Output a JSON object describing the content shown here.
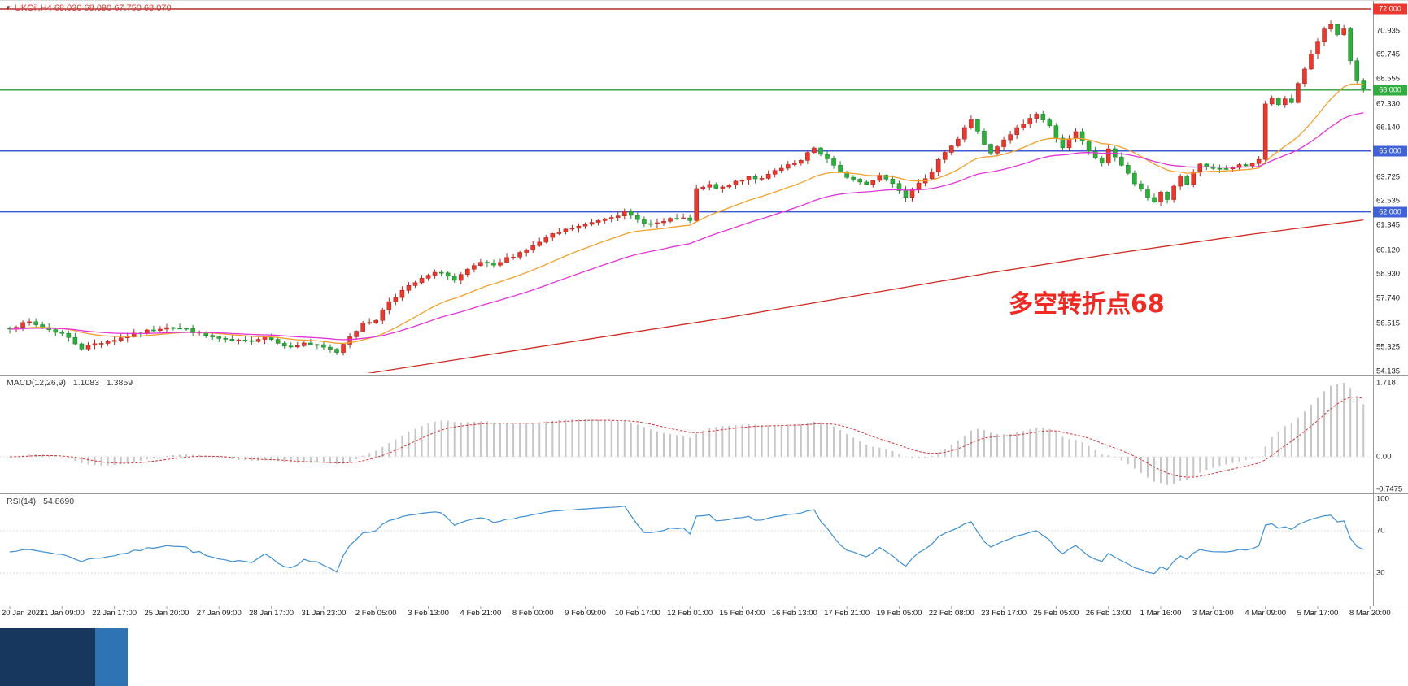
{
  "colors": {
    "up": "#e8392f",
    "up_border": "#b7271f",
    "down": "#2fae3e",
    "down_border": "#1d8b2c",
    "ma_fast": "#f0a030",
    "ma_mid": "#e236d6",
    "ma_slow": "#cc2a22",
    "macd_hist": "#c6c6c6",
    "macd_signal": "#d23636",
    "rsi_line": "#3f8fd2",
    "separator": "#999999",
    "title": "#d43c37",
    "annotation": "#ee2a24"
  },
  "taskbar_fragment": {
    "dark_block_color": "#17375e",
    "blue_block_color": "#2e74b5"
  },
  "chart_data": [
    {
      "type": "candlestick",
      "symbol": "UKOil",
      "timeframe": "H4",
      "title_full": "UKOil,H4 68.030 68.090 67.750 68.070",
      "quote": {
        "open": "68.030",
        "high": "68.090",
        "low": "67.750",
        "close": "68.070"
      },
      "ylim": [
        54.135,
        72.0
      ],
      "y_ticks": [
        70.935,
        69.745,
        68.555,
        67.33,
        66.14,
        63.725,
        62.535,
        61.345,
        60.12,
        58.93,
        57.74,
        56.515,
        55.325,
        54.135
      ],
      "level_lines": [
        {
          "price": 72.0,
          "label": "72.000",
          "line_color": "#b03030",
          "tag_color": "#e8392f"
        },
        {
          "price": 68.0,
          "label": "68.000",
          "line_color": "#2e9e3a",
          "tag_color": "#2fae3e"
        },
        {
          "price": 65.0,
          "label": "65.000",
          "line_color": "#3c59cf",
          "tag_color": "#3f62d8"
        },
        {
          "price": 62.0,
          "label": "62.000",
          "line_color": "#3c59cf",
          "tag_color": "#3f62d8"
        }
      ],
      "x_labels": [
        "20 Jan 2021",
        "21 Jan 09:00",
        "22 Jan 17:00",
        "25 Jan 20:00",
        "27 Jan 09:00",
        "28 Jan 17:00",
        "31 Jan 23:00",
        "2 Feb 05:00",
        "3 Feb 13:00",
        "4 Feb 21:00",
        "8 Feb 00:00",
        "9 Feb 09:00",
        "10 Feb 17:00",
        "12 Feb 01:00",
        "15 Feb 04:00",
        "16 Feb 13:00",
        "17 Feb 21:00",
        "19 Feb 05:00",
        "22 Feb 08:00",
        "23 Feb 17:00",
        "25 Feb 05:00",
        "26 Feb 13:00",
        "1 Mar 16:00",
        "3 Mar 01:00",
        "4 Mar 09:00",
        "5 Mar 17:00",
        "8 Mar 20:00"
      ],
      "candles_per_label": 8,
      "candle_count": 208,
      "close_waypoints": [
        [
          0,
          56.3
        ],
        [
          3,
          56.55
        ],
        [
          6,
          56.2
        ],
        [
          8,
          56.0
        ],
        [
          11,
          55.3
        ],
        [
          13,
          55.5
        ],
        [
          16,
          55.7
        ],
        [
          19,
          55.95
        ],
        [
          22,
          56.2
        ],
        [
          24,
          56.35
        ],
        [
          27,
          56.2
        ],
        [
          30,
          55.9
        ],
        [
          33,
          55.65
        ],
        [
          36,
          55.6
        ],
        [
          39,
          55.85
        ],
        [
          41,
          55.6
        ],
        [
          43,
          55.3
        ],
        [
          45,
          55.55
        ],
        [
          48,
          55.3
        ],
        [
          50,
          55.1
        ],
        [
          52,
          55.9
        ],
        [
          54,
          56.45
        ],
        [
          56,
          56.7
        ],
        [
          58,
          57.6
        ],
        [
          60,
          58.1
        ],
        [
          62,
          58.5
        ],
        [
          64,
          58.85
        ],
        [
          66,
          59.05
        ],
        [
          68,
          58.6
        ],
        [
          70,
          59.1
        ],
        [
          72,
          59.5
        ],
        [
          74,
          59.3
        ],
        [
          76,
          59.7
        ],
        [
          78,
          60.0
        ],
        [
          80,
          60.3
        ],
        [
          82,
          60.7
        ],
        [
          84,
          61.0
        ],
        [
          86,
          61.2
        ],
        [
          88,
          61.35
        ],
        [
          90,
          61.6
        ],
        [
          92,
          61.8
        ],
        [
          94,
          61.95
        ],
        [
          96,
          61.6
        ],
        [
          98,
          61.4
        ],
        [
          100,
          61.5
        ],
        [
          102,
          61.7
        ],
        [
          104,
          61.55
        ],
        [
          105,
          63.1
        ],
        [
          107,
          63.3
        ],
        [
          109,
          63.15
        ],
        [
          111,
          63.5
        ],
        [
          113,
          63.75
        ],
        [
          115,
          63.6
        ],
        [
          117,
          64.0
        ],
        [
          119,
          64.25
        ],
        [
          121,
          64.5
        ],
        [
          122,
          64.85
        ],
        [
          123,
          65.15
        ],
        [
          125,
          64.6
        ],
        [
          127,
          63.9
        ],
        [
          129,
          63.6
        ],
        [
          131,
          63.35
        ],
        [
          133,
          63.85
        ],
        [
          135,
          63.4
        ],
        [
          137,
          62.8
        ],
        [
          139,
          63.5
        ],
        [
          141,
          63.9
        ],
        [
          142,
          64.5
        ],
        [
          143,
          65.0
        ],
        [
          145,
          65.6
        ],
        [
          146,
          66.15
        ],
        [
          147,
          66.5
        ],
        [
          148,
          66.0
        ],
        [
          149,
          65.35
        ],
        [
          150,
          64.85
        ],
        [
          152,
          65.5
        ],
        [
          154,
          66.1
        ],
        [
          156,
          66.6
        ],
        [
          157,
          66.85
        ],
        [
          159,
          66.2
        ],
        [
          161,
          65.2
        ],
        [
          163,
          65.9
        ],
        [
          165,
          65.0
        ],
        [
          167,
          64.35
        ],
        [
          168,
          65.15
        ],
        [
          170,
          64.3
        ],
        [
          172,
          63.4
        ],
        [
          174,
          62.7
        ],
        [
          175,
          62.5
        ],
        [
          176,
          63.0
        ],
        [
          177,
          62.6
        ],
        [
          178,
          63.3
        ],
        [
          179,
          63.7
        ],
        [
          180,
          63.35
        ],
        [
          181,
          63.9
        ],
        [
          182,
          64.3
        ],
        [
          184,
          64.15
        ],
        [
          186,
          64.05
        ],
        [
          188,
          64.3
        ],
        [
          190,
          64.35
        ],
        [
          191,
          64.6
        ],
        [
          192,
          67.3
        ],
        [
          193,
          67.55
        ],
        [
          194,
          67.3
        ],
        [
          195,
          67.6
        ],
        [
          196,
          67.45
        ],
        [
          197,
          68.3
        ],
        [
          198,
          69.0
        ],
        [
          199,
          69.7
        ],
        [
          200,
          70.4
        ],
        [
          201,
          71.05
        ],
        [
          202,
          71.3
        ],
        [
          203,
          70.7
        ],
        [
          204,
          70.95
        ],
        [
          205,
          69.4
        ],
        [
          206,
          68.4
        ],
        [
          207,
          68.07
        ]
      ],
      "moving_averages": [
        {
          "name": "fast",
          "method": "ema",
          "period": 20,
          "color": "#f0a030"
        },
        {
          "name": "medium",
          "method": "ema",
          "period": 42,
          "color": "#e236d6"
        },
        {
          "name": "slow",
          "method": "waypoints",
          "color": "#cc2a22",
          "waypoints": [
            [
              52,
              53.9
            ],
            [
              70,
              54.8
            ],
            [
              90,
              55.8
            ],
            [
              110,
              56.8
            ],
            [
              130,
              57.9
            ],
            [
              150,
              59.0
            ],
            [
              170,
              60.0
            ],
            [
              190,
              60.9
            ],
            [
              207,
              61.6
            ]
          ]
        }
      ],
      "annotation": {
        "text": "多空转折点68",
        "color": "#ee2a24"
      }
    },
    {
      "type": "macd",
      "label": "MACD(12,26,9)",
      "current_macd": "1.1083",
      "current_signal": "1.3859",
      "fast": 12,
      "slow": 26,
      "signal_period": 9,
      "y_ticks": [
        "1.718",
        "0.00",
        "-0.7475"
      ],
      "y_tick_values": [
        1.718,
        0,
        -0.7475
      ],
      "hist_max": 1.718
    },
    {
      "type": "rsi",
      "label": "RSI(14)",
      "current": "54.8690",
      "period": 14,
      "y_ticks": [
        "100",
        "70",
        "30"
      ],
      "y_tick_values": [
        100,
        70,
        30
      ],
      "levels": [
        70,
        30
      ],
      "range": [
        0,
        100
      ]
    }
  ]
}
